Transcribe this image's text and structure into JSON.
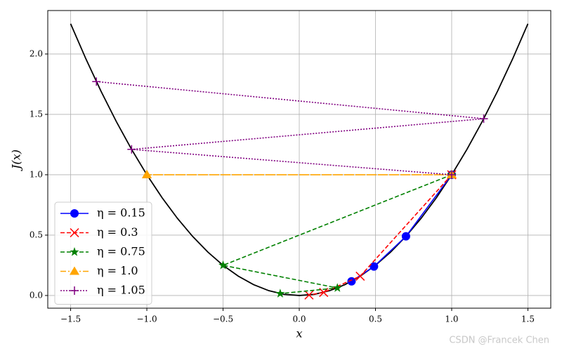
{
  "chart_data": {
    "type": "line",
    "xlabel": "x",
    "ylabel": "J(x)",
    "xlim": [
      -1.65,
      1.65
    ],
    "ylim": [
      -0.105,
      2.36
    ],
    "xticks": [
      {
        "value": -1.5,
        "label": "−1.5"
      },
      {
        "value": -1,
        "label": "−1.0"
      },
      {
        "value": -0.5,
        "label": "−0.5"
      },
      {
        "value": 0,
        "label": "0.0"
      },
      0.5,
      {
        "value": 1,
        "label": "1.0"
      },
      1.5
    ],
    "yticks": [
      {
        "value": 0,
        "label": "0.0"
      },
      0.5,
      {
        "value": 1,
        "label": "1.0"
      },
      1.5,
      {
        "value": 2,
        "label": "2.0"
      }
    ],
    "grid": true,
    "legend": "lower left",
    "curve": {
      "color": "#000000",
      "x": [
        -1.5,
        -1.4,
        -1.3,
        -1.2,
        -1.1,
        -1.0,
        -0.9,
        -0.8,
        -0.7,
        -0.6,
        -0.5,
        -0.4,
        -0.3,
        -0.2,
        -0.1,
        0,
        0.1,
        0.2,
        0.3,
        0.4,
        0.5,
        0.6,
        0.7,
        0.8,
        0.9,
        1.0,
        1.1,
        1.2,
        1.3,
        1.4,
        1.5
      ],
      "values": [
        2.25,
        1.96,
        1.69,
        1.44,
        1.21,
        1.0,
        0.81,
        0.64,
        0.49,
        0.36,
        0.25,
        0.16,
        0.09,
        0.04,
        0.01,
        0,
        0.01,
        0.04,
        0.09,
        0.16,
        0.25,
        0.36,
        0.49,
        0.64,
        0.81,
        1.0,
        1.21,
        1.44,
        1.69,
        1.96,
        2.25
      ]
    },
    "series": [
      {
        "name": "η = 0.15",
        "color": "#0000ff",
        "marker": "circle",
        "linestyle": "solid",
        "x": [
          1,
          0.7,
          0.49,
          0.343
        ],
        "values": [
          1,
          0.49,
          0.2401,
          0.117649
        ]
      },
      {
        "name": "η = 0.3",
        "color": "#ff0000",
        "marker": "x",
        "linestyle": "dashed",
        "x": [
          1,
          0.4,
          0.16,
          0.064
        ],
        "values": [
          1,
          0.16,
          0.0256,
          0.004096
        ]
      },
      {
        "name": "η = 0.75",
        "color": "#008000",
        "marker": "star",
        "linestyle": "dashed",
        "x": [
          1,
          -0.5,
          0.25,
          -0.125
        ],
        "values": [
          1,
          0.25,
          0.0625,
          0.015625
        ]
      },
      {
        "name": "η = 1.0",
        "color": "#ffa500",
        "marker": "triangle",
        "linestyle": "dashdot",
        "x": [
          1,
          -1,
          1,
          -1
        ],
        "values": [
          1,
          1,
          1,
          1
        ]
      },
      {
        "name": "η = 1.05",
        "color": "#800080",
        "marker": "plus",
        "linestyle": "dotted",
        "x": [
          1,
          -1.1,
          1.21,
          -1.331
        ],
        "values": [
          1,
          1.21,
          1.4641,
          1.771561
        ]
      }
    ],
    "watermark": "CSDN @Francek Chen"
  }
}
